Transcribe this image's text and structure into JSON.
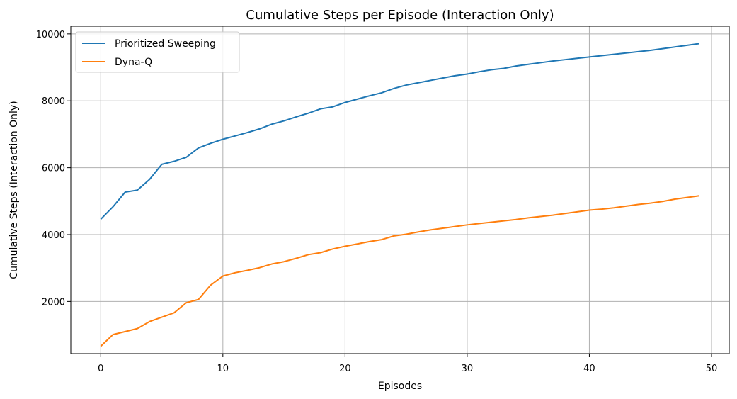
{
  "chart_data": {
    "type": "line",
    "title": "Cumulative Steps per Episode (Interaction Only)",
    "xlabel": "Episodes",
    "ylabel": "Cumulative Steps (Interaction Only)",
    "xlim": [
      -2.45,
      51.45
    ],
    "ylim": [
      440,
      10230
    ],
    "xticks": [
      0,
      10,
      20,
      30,
      40,
      50
    ],
    "yticks": [
      2000,
      4000,
      6000,
      8000,
      10000
    ],
    "grid": true,
    "legend_position": "top-left",
    "series": [
      {
        "name": "Prioritized Sweeping",
        "color": "#1f77b4",
        "x": [
          0,
          1,
          2,
          3,
          4,
          5,
          6,
          7,
          8,
          9,
          10,
          11,
          12,
          13,
          14,
          15,
          16,
          17,
          18,
          19,
          20,
          21,
          22,
          23,
          24,
          25,
          26,
          27,
          28,
          29,
          30,
          31,
          32,
          33,
          34,
          35,
          36,
          37,
          38,
          39,
          40,
          41,
          42,
          43,
          44,
          45,
          46,
          47,
          48,
          49
        ],
        "values": [
          4460,
          4830,
          5270,
          5330,
          5650,
          6100,
          6190,
          6310,
          6590,
          6730,
          6850,
          6950,
          7050,
          7160,
          7300,
          7400,
          7520,
          7630,
          7760,
          7820,
          7950,
          8050,
          8150,
          8240,
          8370,
          8470,
          8540,
          8610,
          8680,
          8750,
          8800,
          8870,
          8930,
          8970,
          9040,
          9090,
          9140,
          9190,
          9230,
          9270,
          9310,
          9350,
          9390,
          9430,
          9470,
          9510,
          9560,
          9610,
          9660,
          9710
        ]
      },
      {
        "name": "Dyna-Q",
        "color": "#ff7f0e",
        "x": [
          0,
          1,
          2,
          3,
          4,
          5,
          6,
          7,
          8,
          9,
          10,
          11,
          12,
          13,
          14,
          15,
          16,
          17,
          18,
          19,
          20,
          21,
          22,
          23,
          24,
          25,
          26,
          27,
          28,
          29,
          30,
          31,
          32,
          33,
          34,
          35,
          36,
          37,
          38,
          39,
          40,
          41,
          42,
          43,
          44,
          45,
          46,
          47,
          48,
          49
        ],
        "values": [
          660,
          1010,
          1100,
          1190,
          1400,
          1530,
          1660,
          1960,
          2060,
          2490,
          2760,
          2860,
          2930,
          3010,
          3120,
          3190,
          3290,
          3400,
          3460,
          3570,
          3650,
          3720,
          3790,
          3850,
          3960,
          4010,
          4080,
          4140,
          4190,
          4240,
          4290,
          4330,
          4370,
          4410,
          4450,
          4500,
          4540,
          4580,
          4630,
          4680,
          4730,
          4760,
          4800,
          4850,
          4900,
          4940,
          4990,
          5060,
          5110,
          5160
        ]
      }
    ]
  }
}
